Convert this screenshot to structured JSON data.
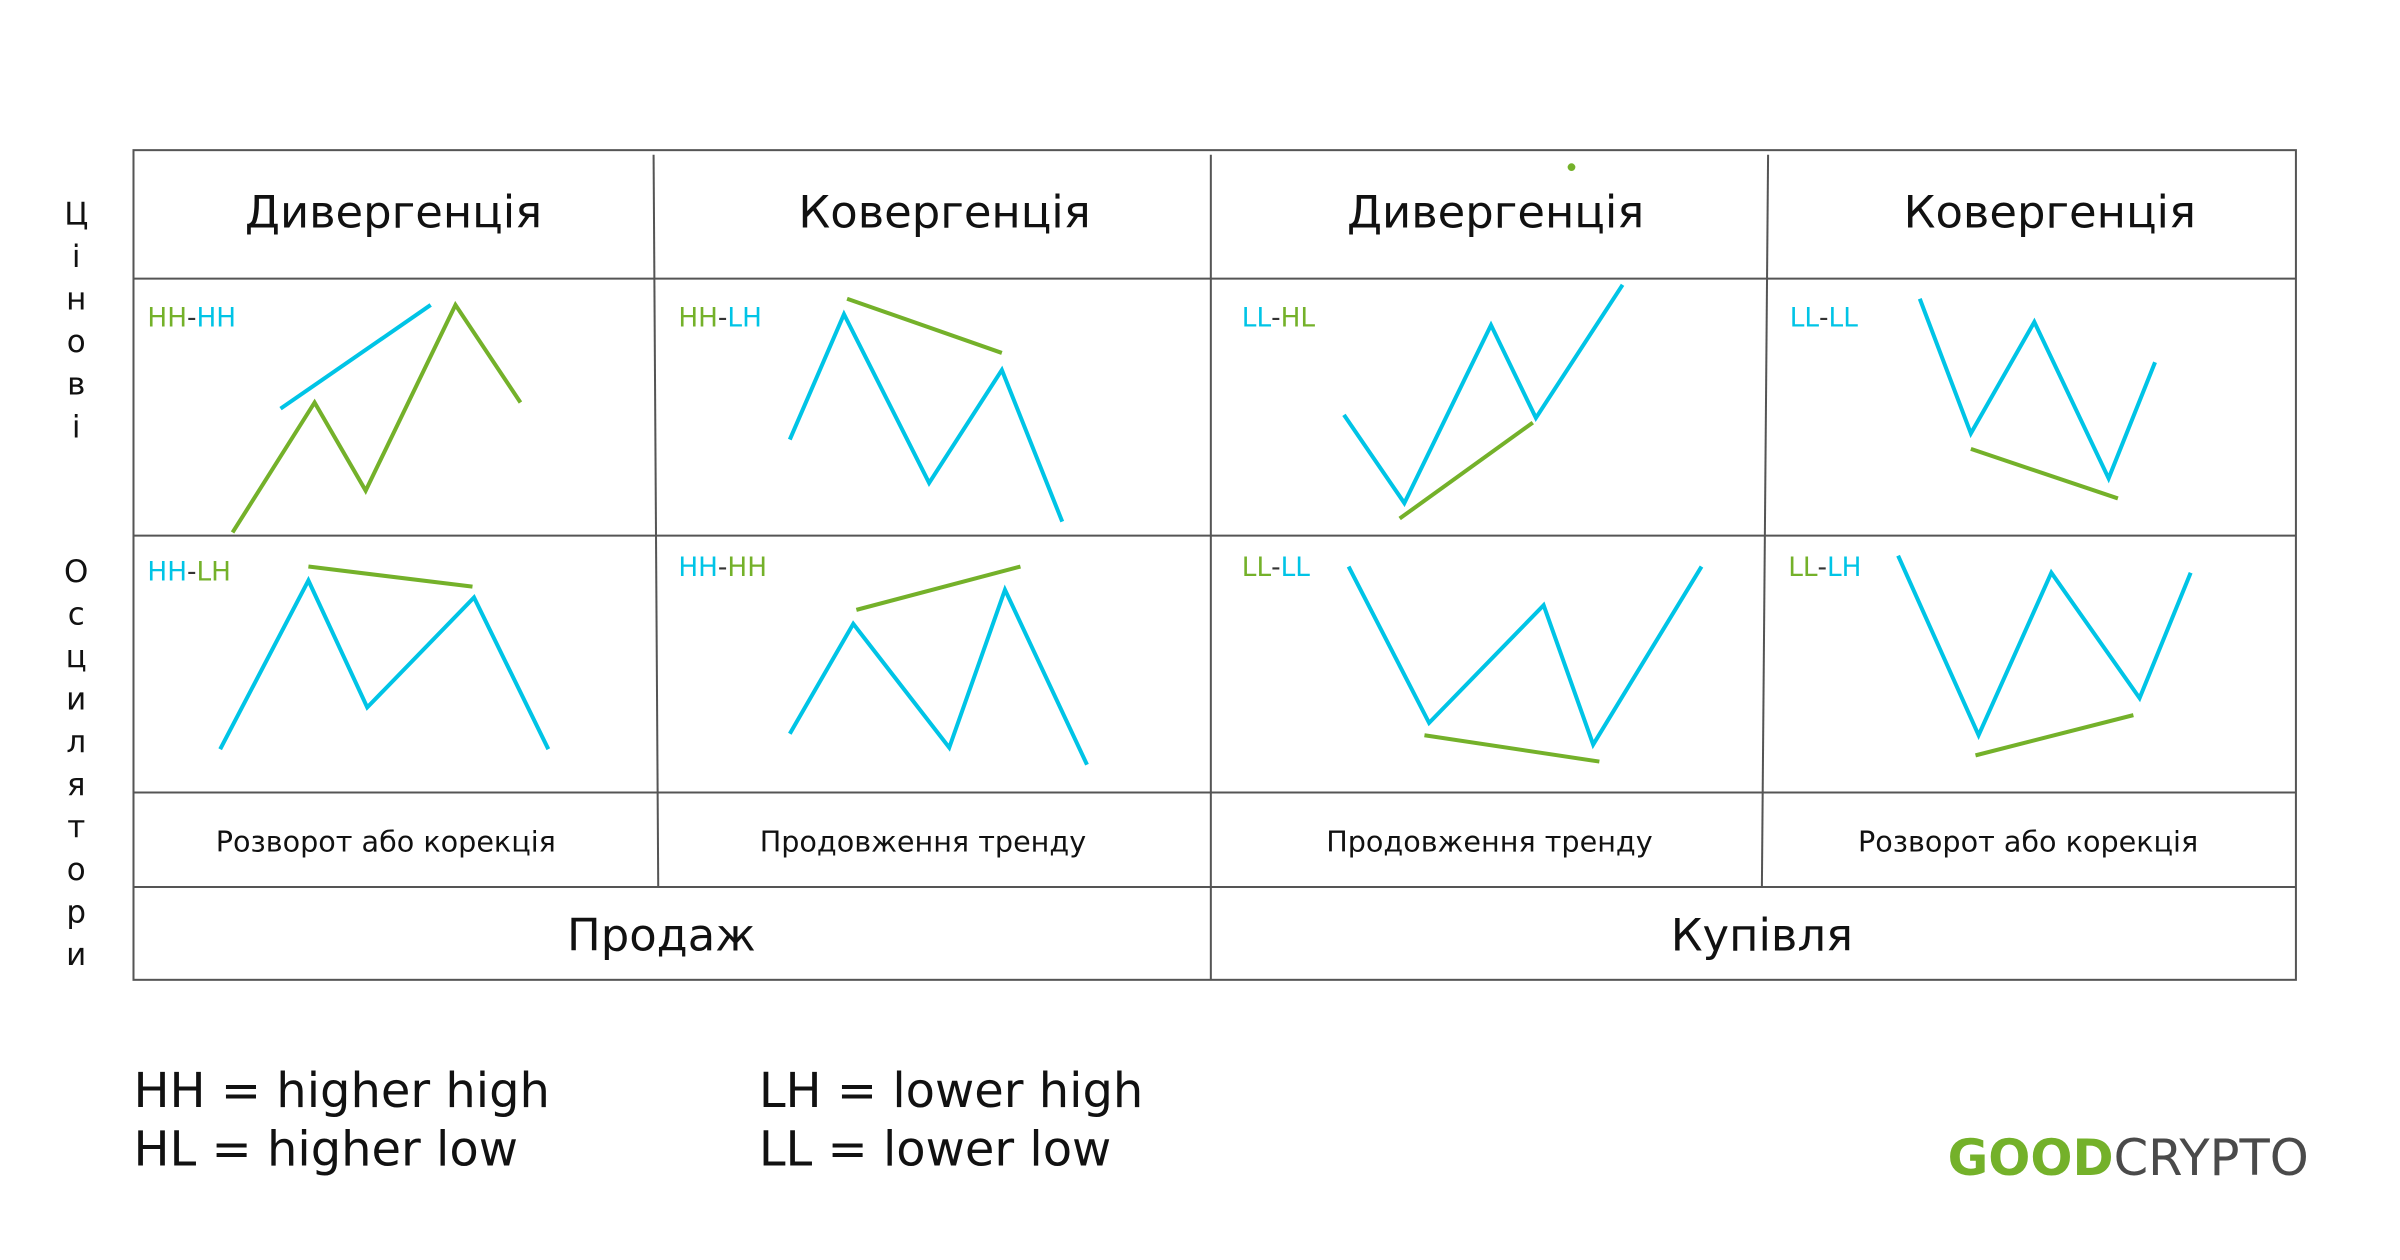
{
  "colors": {
    "green": "#74b12a",
    "cyan": "#00c4e6",
    "grid": "#555555",
    "text": "#111111"
  },
  "side_labels": {
    "price": [
      "Ц",
      "і",
      "н",
      "о",
      "в",
      "і"
    ],
    "oscillators": [
      "О",
      "с",
      "ц",
      "и",
      "л",
      "я",
      "т",
      "о",
      "р",
      "и"
    ]
  },
  "headers": [
    "Дивергенція",
    "Ковергенція",
    "Дивергенція",
    "Ковергенція"
  ],
  "cells": [
    {
      "parts": [
        {
          "t": "HH",
          "c": "green"
        },
        {
          "t": "-",
          "c": "dark"
        },
        {
          "t": "HH",
          "c": "cyan"
        }
      ]
    },
    {
      "parts": [
        {
          "t": "HH",
          "c": "green"
        },
        {
          "t": "-",
          "c": "dark"
        },
        {
          "t": "LH",
          "c": "cyan"
        }
      ]
    },
    {
      "parts": [
        {
          "t": "LL",
          "c": "cyan"
        },
        {
          "t": "-",
          "c": "dark"
        },
        {
          "t": "HL",
          "c": "green"
        }
      ]
    },
    {
      "parts": [
        {
          "t": "LL",
          "c": "cyan"
        },
        {
          "t": "-",
          "c": "dark"
        },
        {
          "t": "LL",
          "c": "cyan"
        }
      ]
    },
    {
      "parts": [
        {
          "t": "HH",
          "c": "cyan"
        },
        {
          "t": "-",
          "c": "dark"
        },
        {
          "t": "LH",
          "c": "green"
        }
      ]
    },
    {
      "parts": [
        {
          "t": "HH",
          "c": "cyan"
        },
        {
          "t": "-",
          "c": "dark"
        },
        {
          "t": "HH",
          "c": "green"
        }
      ]
    },
    {
      "parts": [
        {
          "t": "LL",
          "c": "green"
        },
        {
          "t": "-",
          "c": "dark"
        },
        {
          "t": "LL",
          "c": "cyan"
        }
      ]
    },
    {
      "parts": [
        {
          "t": "LL",
          "c": "green"
        },
        {
          "t": "-",
          "c": "dark"
        },
        {
          "t": "LH",
          "c": "cyan"
        }
      ]
    }
  ],
  "outcomes": [
    "Розворот або корекція",
    "Продовження тренду",
    "Продовження тренду",
    "Розворот або корекція"
  ],
  "actions": [
    "Продаж",
    "Купівля"
  ],
  "legend": [
    "HH = higher high",
    "HL = higher low",
    "LH = lower high",
    "LL = lower low"
  ],
  "logo": {
    "part1": "GOOD",
    "part2": "CRYPTO"
  }
}
